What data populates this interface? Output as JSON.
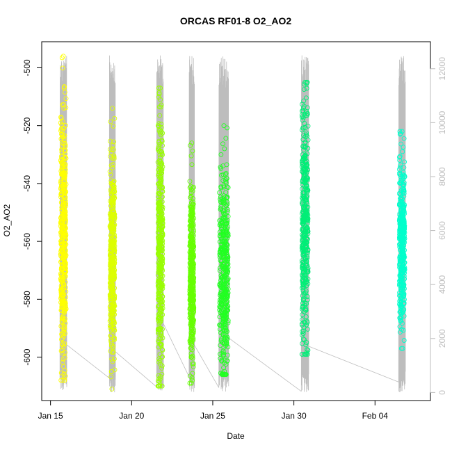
{
  "chart_data": {
    "type": "scatter",
    "title": "ORCAS RF01-8 O2_AO2",
    "xlabel": "Date",
    "ylabel": "O2_AO2",
    "xlim": [
      "2016-01-14T11:00",
      "2016-02-07T10:00"
    ],
    "ylim": [
      -615,
      -491
    ],
    "y2lim": [
      -300,
      13000
    ],
    "x_ticks": [
      {
        "label": "Jan 15",
        "date": "2016-01-15"
      },
      {
        "label": "Jan 20",
        "date": "2016-01-20"
      },
      {
        "label": "Jan 25",
        "date": "2016-01-25"
      },
      {
        "label": "Jan 30",
        "date": "2016-01-30"
      },
      {
        "label": "Feb 04",
        "date": "2016-02-04"
      }
    ],
    "y_ticks": [
      -600,
      -580,
      -560,
      -540,
      -520,
      -500
    ],
    "y2_ticks": [
      0,
      2000,
      4000,
      6000,
      8000,
      10000,
      12000
    ],
    "grid": false,
    "series": [
      {
        "start": "2016-01-15T15:00",
        "end": "2016-01-15T23:00",
        "ymin": -608,
        "ymax": -496,
        "center": -560,
        "spread": 22,
        "color": "#FFFF00"
      },
      {
        "start": "2016-01-18T16:00",
        "end": "2016-01-18T23:00",
        "ymin": -611,
        "ymax": -514,
        "center": -565,
        "spread": 16,
        "color": "#DDFF00"
      },
      {
        "start": "2016-01-21T15:00",
        "end": "2016-01-21T22:00",
        "ymin": -610,
        "ymax": -507,
        "center": -562,
        "spread": 22,
        "color": "#99FF00"
      },
      {
        "start": "2016-01-23T14:00",
        "end": "2016-01-23T20:00",
        "ymin": -609,
        "ymax": -526,
        "center": -572,
        "spread": 14,
        "color": "#66FF00"
      },
      {
        "start": "2016-01-25T10:00",
        "end": "2016-01-25T23:00",
        "ymin": -606,
        "ymax": -520,
        "center": -570,
        "spread": 18,
        "color": "#22FF22"
      },
      {
        "start": "2016-01-30T12:00",
        "end": "2016-01-30T21:00",
        "ymin": -599,
        "ymax": -505,
        "center": -555,
        "spread": 22,
        "color": "#00EE77"
      },
      {
        "start": "2016-02-05T12:00",
        "end": "2016-02-05T20:00",
        "ymin": -597,
        "ymax": -522,
        "center": -560,
        "spread": 14,
        "color": "#00FFCC"
      }
    ],
    "time_trace": {
      "color": "#bdbdbd",
      "segments": [
        [
          "2016-01-15T14:00",
          "2016-01-16T00:00"
        ],
        [
          "2016-01-18T15:00",
          "2016-01-19T00:00"
        ],
        [
          "2016-01-21T13:00",
          "2016-01-21T23:00"
        ],
        [
          "2016-01-23T13:00",
          "2016-01-23T21:00"
        ],
        [
          "2016-01-25T09:00",
          "2016-01-25T23:30"
        ],
        [
          "2016-01-30T11:00",
          "2016-01-30T22:00"
        ],
        [
          "2016-02-05T11:00",
          "2016-02-05T21:00"
        ]
      ],
      "range": [
        0,
        12500
      ]
    }
  }
}
